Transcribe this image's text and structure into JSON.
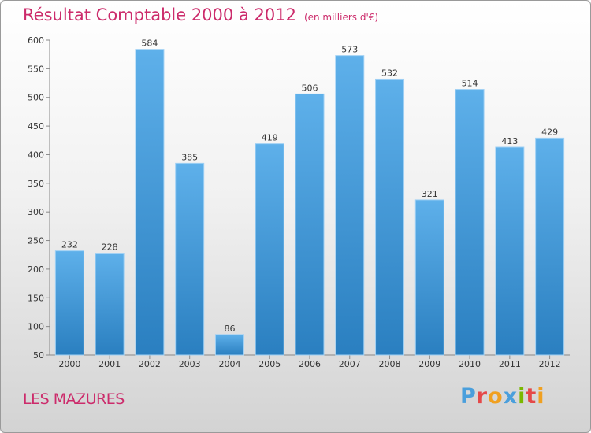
{
  "header": {
    "title": "Résultat Comptable 2000 à 2012",
    "subtitle": "(en milliers d'€)"
  },
  "footer": {
    "commune": "LES MAZURES",
    "logo": "Proxiti"
  },
  "colors": {
    "title": "#cc2b6b",
    "bar_top": "#5eb0ea",
    "bar_bottom": "#2a7fc0",
    "logo": [
      "#4a9fdc",
      "#e54848",
      "#f0a020",
      "#4a9fdc",
      "#7ab800",
      "#e54848",
      "#f0a020"
    ]
  },
  "chart_data": {
    "type": "bar",
    "title": "Résultat Comptable 2000 à 2012",
    "subtitle": "(en milliers d'€)",
    "categories": [
      "2000",
      "2001",
      "2002",
      "2003",
      "2004",
      "2005",
      "2006",
      "2007",
      "2008",
      "2009",
      "2010",
      "2011",
      "2012"
    ],
    "values": [
      232,
      228,
      584,
      385,
      86,
      419,
      506,
      573,
      532,
      321,
      514,
      413,
      429
    ],
    "ylim": [
      50,
      600
    ],
    "yticks": [
      50,
      100,
      150,
      200,
      250,
      300,
      350,
      400,
      450,
      500,
      550,
      600
    ],
    "xlabel": "",
    "ylabel": "",
    "grid": false
  }
}
